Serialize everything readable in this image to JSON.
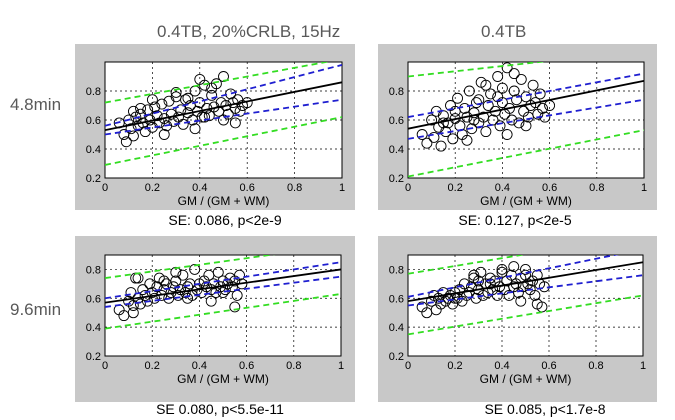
{
  "figure": {
    "col_titles": [
      "0.4TB, 20%CRLB, 15Hz",
      "0.4TB"
    ],
    "row_labels": [
      "4.8min",
      "9.6min"
    ],
    "colors": {
      "panel_bg": "#c8c8c8",
      "fit_line": "#000000",
      "confidence_band": "#1f1fd0",
      "prediction_band": "#33dd22",
      "points": "#000000"
    }
  },
  "chart_data": [
    {
      "type": "scatter",
      "title": "0.4TB, 20%CRLB, 15Hz — 4.8min",
      "xlabel": "GM / (GM + WM)",
      "ylabel": "",
      "xlim": [
        0,
        1
      ],
      "ylim": [
        0.2,
        1.0
      ],
      "x_ticks": [
        "0",
        "0.2",
        "0.4",
        "0.6",
        "0.8",
        "1"
      ],
      "y_ticks": [
        "0.2",
        "0.4",
        "0.6",
        "0.8"
      ],
      "grid": true,
      "caption": "SE: 0.086, p<2e-9",
      "fit": {
        "intercept": 0.53,
        "slope": 0.33
      },
      "conf_upper": {
        "intercept": 0.56,
        "slope": 0.42
      },
      "conf_lower": {
        "intercept": 0.5,
        "slope": 0.24
      },
      "pred_upper": {
        "intercept": 0.72,
        "slope": 0.3
      },
      "pred_lower": {
        "intercept": 0.29,
        "slope": 0.33
      },
      "points_x": [
        0.06,
        0.08,
        0.09,
        0.1,
        0.11,
        0.12,
        0.12,
        0.13,
        0.14,
        0.15,
        0.16,
        0.17,
        0.18,
        0.19,
        0.2,
        0.21,
        0.22,
        0.23,
        0.24,
        0.25,
        0.26,
        0.27,
        0.28,
        0.29,
        0.3,
        0.31,
        0.32,
        0.33,
        0.34,
        0.35,
        0.36,
        0.37,
        0.38,
        0.39,
        0.4,
        0.41,
        0.42,
        0.43,
        0.44,
        0.45,
        0.46,
        0.47,
        0.48,
        0.49,
        0.5,
        0.51,
        0.52,
        0.53,
        0.54,
        0.55,
        0.56,
        0.57,
        0.58,
        0.6,
        0.45,
        0.4,
        0.35,
        0.3,
        0.25,
        0.5,
        0.55,
        0.2,
        0.15,
        0.42,
        0.38
      ],
      "points_y": [
        0.58,
        0.5,
        0.45,
        0.6,
        0.54,
        0.66,
        0.49,
        0.62,
        0.56,
        0.64,
        0.58,
        0.52,
        0.67,
        0.6,
        0.55,
        0.69,
        0.63,
        0.58,
        0.71,
        0.61,
        0.56,
        0.73,
        0.64,
        0.59,
        0.76,
        0.62,
        0.67,
        0.57,
        0.74,
        0.65,
        0.7,
        0.6,
        0.8,
        0.66,
        0.72,
        0.62,
        0.84,
        0.68,
        0.63,
        0.77,
        0.69,
        0.85,
        0.66,
        0.72,
        0.9,
        0.7,
        0.64,
        0.78,
        0.72,
        0.68,
        0.74,
        0.66,
        0.7,
        0.72,
        0.82,
        0.88,
        0.75,
        0.79,
        0.5,
        0.6,
        0.58,
        0.74,
        0.68,
        0.62,
        0.54
      ]
    },
    {
      "type": "scatter",
      "title": "0.4TB — 4.8min",
      "xlabel": "GM / (GM + WM)",
      "ylabel": "",
      "xlim": [
        0,
        1
      ],
      "ylim": [
        0.2,
        1.0
      ],
      "x_ticks": [
        "0",
        "0.2",
        "0.4",
        "0.6",
        "0.8",
        "1"
      ],
      "y_ticks": [
        "0.2",
        "0.4",
        "0.6",
        "0.8"
      ],
      "grid": true,
      "caption": "SE: 0.127, p<2e-5",
      "fit": {
        "intercept": 0.54,
        "slope": 0.33
      },
      "conf_upper": {
        "intercept": 0.62,
        "slope": 0.3
      },
      "conf_lower": {
        "intercept": 0.47,
        "slope": 0.27
      },
      "pred_upper": {
        "intercept": 0.9,
        "slope": 0.18
      },
      "pred_lower": {
        "intercept": 0.21,
        "slope": 0.32
      },
      "points_x": [
        0.06,
        0.08,
        0.1,
        0.11,
        0.12,
        0.13,
        0.14,
        0.15,
        0.16,
        0.17,
        0.18,
        0.19,
        0.2,
        0.21,
        0.22,
        0.23,
        0.24,
        0.25,
        0.26,
        0.27,
        0.28,
        0.29,
        0.3,
        0.31,
        0.32,
        0.33,
        0.34,
        0.35,
        0.36,
        0.37,
        0.38,
        0.39,
        0.4,
        0.41,
        0.42,
        0.43,
        0.44,
        0.45,
        0.46,
        0.47,
        0.48,
        0.49,
        0.5,
        0.51,
        0.52,
        0.53,
        0.54,
        0.55,
        0.56,
        0.57,
        0.58,
        0.6,
        0.45,
        0.4,
        0.3,
        0.25,
        0.5,
        0.2,
        0.15,
        0.42,
        0.38,
        0.33,
        0.28
      ],
      "points_y": [
        0.5,
        0.44,
        0.6,
        0.48,
        0.66,
        0.55,
        0.42,
        0.63,
        0.52,
        0.58,
        0.7,
        0.47,
        0.61,
        0.75,
        0.56,
        0.5,
        0.68,
        0.62,
        0.8,
        0.54,
        0.65,
        0.72,
        0.58,
        0.86,
        0.62,
        0.52,
        0.7,
        0.78,
        0.6,
        0.66,
        0.9,
        0.56,
        0.72,
        0.64,
        0.96,
        0.68,
        0.6,
        0.8,
        0.74,
        0.58,
        0.88,
        0.66,
        0.76,
        0.62,
        0.7,
        0.84,
        0.72,
        0.64,
        0.78,
        0.68,
        0.62,
        0.7,
        0.92,
        0.82,
        0.74,
        0.46,
        0.56,
        0.66,
        0.58,
        0.5,
        0.76,
        0.84,
        0.6
      ]
    },
    {
      "type": "scatter",
      "title": "0.4TB, 20%CRLB, 15Hz — 9.6min",
      "xlabel": "GM / (GM + WM)",
      "ylabel": "",
      "xlim": [
        0,
        1
      ],
      "ylim": [
        0.2,
        0.9
      ],
      "x_ticks": [
        "0",
        "0.2",
        "0.4",
        "0.6",
        "0.8",
        "1"
      ],
      "y_ticks": [
        "0.2",
        "0.4",
        "0.6",
        "0.8"
      ],
      "grid": true,
      "caption": "SE 0.080, p<5.5e-11",
      "fit": {
        "intercept": 0.57,
        "slope": 0.23
      },
      "conf_upper": {
        "intercept": 0.6,
        "slope": 0.25
      },
      "conf_lower": {
        "intercept": 0.54,
        "slope": 0.21
      },
      "pred_upper": {
        "intercept": 0.74,
        "slope": 0.23
      },
      "pred_lower": {
        "intercept": 0.39,
        "slope": 0.24
      },
      "points_x": [
        0.06,
        0.08,
        0.1,
        0.11,
        0.12,
        0.13,
        0.14,
        0.15,
        0.16,
        0.17,
        0.18,
        0.19,
        0.2,
        0.21,
        0.22,
        0.23,
        0.24,
        0.25,
        0.26,
        0.27,
        0.28,
        0.29,
        0.3,
        0.31,
        0.32,
        0.33,
        0.34,
        0.35,
        0.36,
        0.37,
        0.38,
        0.39,
        0.4,
        0.41,
        0.42,
        0.43,
        0.44,
        0.45,
        0.46,
        0.47,
        0.48,
        0.49,
        0.5,
        0.51,
        0.52,
        0.53,
        0.54,
        0.55,
        0.56,
        0.57,
        0.58,
        0.12,
        0.14,
        0.3,
        0.45,
        0.5,
        0.55,
        0.35,
        0.25
      ],
      "points_y": [
        0.52,
        0.48,
        0.58,
        0.64,
        0.55,
        0.74,
        0.6,
        0.56,
        0.66,
        0.62,
        0.58,
        0.7,
        0.64,
        0.6,
        0.68,
        0.74,
        0.62,
        0.66,
        0.7,
        0.6,
        0.64,
        0.68,
        0.72,
        0.62,
        0.66,
        0.76,
        0.64,
        0.68,
        0.7,
        0.62,
        0.8,
        0.66,
        0.7,
        0.64,
        0.72,
        0.68,
        0.76,
        0.66,
        0.7,
        0.64,
        0.78,
        0.68,
        0.72,
        0.66,
        0.7,
        0.74,
        0.68,
        0.72,
        0.62,
        0.76,
        0.7,
        0.5,
        0.74,
        0.78,
        0.58,
        0.64,
        0.54,
        0.6,
        0.72
      ]
    },
    {
      "type": "scatter",
      "title": "0.4TB — 9.6min",
      "xlabel": "GM / (GM + WM)",
      "ylabel": "",
      "xlim": [
        0,
        1
      ],
      "ylim": [
        0.2,
        0.9
      ],
      "x_ticks": [
        "0",
        "0.2",
        "0.4",
        "0.6",
        "0.8",
        "1"
      ],
      "y_ticks": [
        "0.2",
        "0.4",
        "0.6",
        "0.8"
      ],
      "grid": true,
      "caption": "SE 0.085, p<1.7e-8",
      "fit": {
        "intercept": 0.58,
        "slope": 0.27
      },
      "conf_upper": {
        "intercept": 0.61,
        "slope": 0.33
      },
      "conf_lower": {
        "intercept": 0.55,
        "slope": 0.21
      },
      "pred_upper": {
        "intercept": 0.77,
        "slope": 0.27
      },
      "pred_lower": {
        "intercept": 0.35,
        "slope": 0.27
      },
      "points_x": [
        0.06,
        0.08,
        0.1,
        0.11,
        0.12,
        0.13,
        0.14,
        0.15,
        0.16,
        0.17,
        0.18,
        0.19,
        0.2,
        0.21,
        0.22,
        0.23,
        0.24,
        0.25,
        0.26,
        0.27,
        0.28,
        0.29,
        0.3,
        0.31,
        0.32,
        0.33,
        0.34,
        0.35,
        0.36,
        0.37,
        0.38,
        0.39,
        0.4,
        0.41,
        0.42,
        0.43,
        0.44,
        0.45,
        0.46,
        0.47,
        0.48,
        0.49,
        0.5,
        0.51,
        0.52,
        0.53,
        0.54,
        0.55,
        0.56,
        0.57,
        0.58,
        0.28,
        0.3,
        0.4,
        0.45,
        0.5,
        0.55,
        0.2,
        0.35,
        0.48
      ],
      "points_y": [
        0.54,
        0.5,
        0.58,
        0.62,
        0.52,
        0.6,
        0.56,
        0.64,
        0.58,
        0.6,
        0.62,
        0.56,
        0.64,
        0.6,
        0.66,
        0.58,
        0.7,
        0.62,
        0.64,
        0.68,
        0.76,
        0.6,
        0.66,
        0.78,
        0.62,
        0.7,
        0.64,
        0.74,
        0.66,
        0.72,
        0.62,
        0.68,
        0.8,
        0.66,
        0.72,
        0.62,
        0.76,
        0.68,
        0.7,
        0.64,
        0.74,
        0.68,
        0.8,
        0.7,
        0.66,
        0.72,
        0.62,
        0.76,
        0.7,
        0.54,
        0.68,
        0.74,
        0.72,
        0.78,
        0.82,
        0.76,
        0.56,
        0.6,
        0.7,
        0.58
      ]
    }
  ]
}
